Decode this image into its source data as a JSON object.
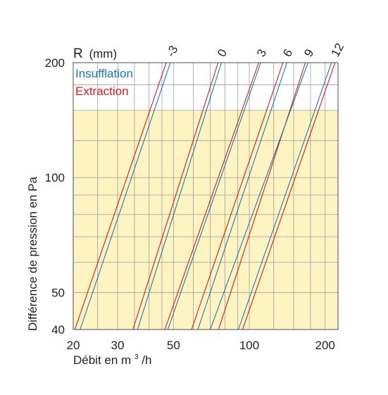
{
  "chart_data": {
    "type": "line",
    "x_scale": "log",
    "y_scale": "log",
    "xlim": [
      20,
      225
    ],
    "ylim": [
      40,
      200
    ],
    "x_ticks": [
      20,
      30,
      50,
      100,
      200
    ],
    "x_tick_labels": [
      "20",
      "30",
      "50",
      "100",
      "200"
    ],
    "y_ticks": [
      40,
      50,
      100,
      200
    ],
    "y_tick_labels": [
      "40",
      "50",
      "100",
      "200"
    ],
    "xlabel_main": "Débit en m",
    "xlabel_sup": "3",
    "xlabel_unit": "/h",
    "ylabel": "Différence de pression en Pa",
    "series_label": "R",
    "series_label_unit": "(mm)",
    "grid": true,
    "legend_position": "top-left",
    "legend": [
      {
        "name": "Insufflation",
        "color": "#1a78b4"
      },
      {
        "name": "Extraction",
        "color": "#d7191c"
      }
    ],
    "shaded_band": {
      "y_from": 40,
      "y_to": 150,
      "color": "#fdf4c2"
    },
    "curve_labels": [
      "-3",
      "0",
      "3",
      "6",
      "9",
      "12"
    ],
    "curves": [
      {
        "label": "-3",
        "insufflation": [
          [
            21.3,
            40
          ],
          [
            48.6,
            200
          ]
        ],
        "extraction": [
          [
            20.3,
            40
          ],
          [
            46.8,
            200
          ]
        ]
      },
      {
        "label": "0",
        "insufflation": [
          [
            36.0,
            40
          ],
          [
            77.5,
            200
          ]
        ],
        "extraction": [
          [
            34.5,
            40
          ],
          [
            75.2,
            200
          ]
        ]
      },
      {
        "label": "3",
        "insufflation": [
          [
            47.5,
            40
          ],
          [
            111,
            200
          ]
        ],
        "extraction": [
          [
            46.2,
            40
          ],
          [
            109,
            200
          ]
        ]
      },
      {
        "label": "6",
        "insufflation": [
          [
            62.5,
            40
          ],
          [
            141,
            200
          ]
        ],
        "extraction": [
          [
            59.0,
            40
          ],
          [
            136,
            200
          ]
        ]
      },
      {
        "label": "9",
        "insufflation": [
          [
            70.0,
            40
          ],
          [
            171,
            200
          ]
        ],
        "extraction": [
          [
            75.5,
            40
          ],
          [
            167,
            200
          ]
        ]
      },
      {
        "label": "12",
        "insufflation": [
          [
            90.5,
            40
          ],
          [
            212,
            200
          ]
        ],
        "extraction": [
          [
            94.0,
            40
          ],
          [
            219,
            200
          ]
        ]
      }
    ]
  }
}
